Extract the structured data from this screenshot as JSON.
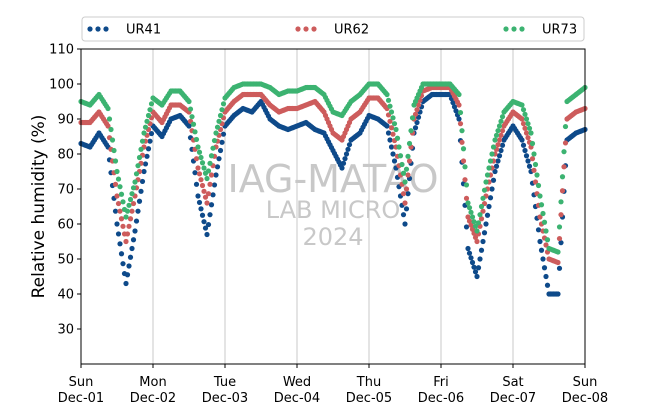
{
  "chart_data": {
    "type": "scatter",
    "ylabel": "Relative humidity (%)",
    "ylim": [
      20,
      110
    ],
    "yticks": [
      30,
      40,
      50,
      60,
      70,
      80,
      90,
      100,
      110
    ],
    "xlim": [
      "2024-12-01T00:00",
      "2024-12-08T00:00"
    ],
    "xticks": [
      {
        "x": "2024-12-01",
        "day": "Sun",
        "date": "Dec-01"
      },
      {
        "x": "2024-12-02",
        "day": "Mon",
        "date": "Dec-02"
      },
      {
        "x": "2024-12-03",
        "day": "Tue",
        "date": "Dec-03"
      },
      {
        "x": "2024-12-04",
        "day": "Wed",
        "date": "Dec-04"
      },
      {
        "x": "2024-12-05",
        "day": "Thu",
        "date": "Dec-05"
      },
      {
        "x": "2024-12-06",
        "day": "Fri",
        "date": "Dec-06"
      },
      {
        "x": "2024-12-07",
        "day": "Sat",
        "date": "Dec-07"
      },
      {
        "x": "2024-12-08",
        "day": "Sun",
        "date": "Dec-08"
      }
    ],
    "grid": "vertical",
    "legend_position": "top",
    "watermark": [
      "IAG-MATAO",
      "LAB MICRO",
      "2024"
    ],
    "series": [
      {
        "name": "UR41",
        "color": "#0e4a8a",
        "x": [
          "2024-12-01T00:00",
          "2024-12-01T03:00",
          "2024-12-01T06:00",
          "2024-12-01T09:00",
          "2024-12-01T12:00",
          "2024-12-01T15:00",
          "2024-12-01T18:00",
          "2024-12-01T21:00",
          "2024-12-02T00:00",
          "2024-12-02T03:00",
          "2024-12-02T06:00",
          "2024-12-02T09:00",
          "2024-12-02T12:00",
          "2024-12-02T15:00",
          "2024-12-02T18:00",
          "2024-12-02T21:00",
          "2024-12-03T00:00",
          "2024-12-03T03:00",
          "2024-12-03T06:00",
          "2024-12-03T09:00",
          "2024-12-03T12:00",
          "2024-12-03T15:00",
          "2024-12-03T18:00",
          "2024-12-03T21:00",
          "2024-12-04T00:00",
          "2024-12-04T03:00",
          "2024-12-04T06:00",
          "2024-12-04T09:00",
          "2024-12-04T12:00",
          "2024-12-04T15:00",
          "2024-12-04T18:00",
          "2024-12-04T21:00",
          "2024-12-05T00:00",
          "2024-12-05T03:00",
          "2024-12-05T06:00",
          "2024-12-05T09:00",
          "2024-12-05T12:00",
          "2024-12-05T15:00",
          "2024-12-05T18:00",
          "2024-12-05T21:00",
          "2024-12-06T00:00",
          "2024-12-06T03:00",
          "2024-12-06T06:00",
          "2024-12-06T09:00",
          "2024-12-06T12:00",
          "2024-12-06T15:00",
          "2024-12-06T18:00",
          "2024-12-06T21:00",
          "2024-12-07T00:00",
          "2024-12-07T03:00",
          "2024-12-07T06:00",
          "2024-12-07T09:00",
          "2024-12-07T12:00",
          "2024-12-07T15:00",
          "2024-12-07T18:00",
          "2024-12-07T21:00",
          "2024-12-08T00:00"
        ],
        "values": [
          83,
          82,
          86,
          82,
          60,
          43,
          58,
          75,
          88,
          85,
          90,
          91,
          88,
          68,
          57,
          74,
          88,
          91,
          93,
          92,
          95,
          90,
          88,
          87,
          88,
          89,
          87,
          86,
          81,
          76,
          84,
          86,
          91,
          90,
          88,
          76,
          60,
          86,
          95,
          97,
          97,
          97,
          90,
          53,
          45,
          60,
          75,
          84,
          88,
          84,
          75,
          55,
          40,
          40,
          84,
          86,
          87
        ]
      },
      {
        "name": "UR62",
        "color": "#cd5c5c",
        "x": [
          "2024-12-01T00:00",
          "2024-12-01T03:00",
          "2024-12-01T06:00",
          "2024-12-01T09:00",
          "2024-12-01T12:00",
          "2024-12-01T15:00",
          "2024-12-01T18:00",
          "2024-12-01T21:00",
          "2024-12-02T00:00",
          "2024-12-02T03:00",
          "2024-12-02T06:00",
          "2024-12-02T09:00",
          "2024-12-02T12:00",
          "2024-12-02T15:00",
          "2024-12-02T18:00",
          "2024-12-02T21:00",
          "2024-12-03T00:00",
          "2024-12-03T03:00",
          "2024-12-03T06:00",
          "2024-12-03T09:00",
          "2024-12-03T12:00",
          "2024-12-03T15:00",
          "2024-12-03T18:00",
          "2024-12-03T21:00",
          "2024-12-04T00:00",
          "2024-12-04T03:00",
          "2024-12-04T06:00",
          "2024-12-04T09:00",
          "2024-12-04T12:00",
          "2024-12-04T15:00",
          "2024-12-04T18:00",
          "2024-12-04T21:00",
          "2024-12-05T00:00",
          "2024-12-05T03:00",
          "2024-12-05T06:00",
          "2024-12-05T09:00",
          "2024-12-05T12:00",
          "2024-12-05T15:00",
          "2024-12-05T18:00",
          "2024-12-05T21:00",
          "2024-12-06T00:00",
          "2024-12-06T03:00",
          "2024-12-06T06:00",
          "2024-12-06T09:00",
          "2024-12-06T12:00",
          "2024-12-06T15:00",
          "2024-12-06T18:00",
          "2024-12-06T21:00",
          "2024-12-07T00:00",
          "2024-12-07T03:00",
          "2024-12-07T06:00",
          "2024-12-07T09:00",
          "2024-12-07T12:00",
          "2024-12-07T15:00",
          "2024-12-07T18:00",
          "2024-12-07T21:00",
          "2024-12-08T00:00"
        ],
        "values": [
          89,
          89,
          92,
          88,
          68,
          55,
          68,
          82,
          92,
          89,
          94,
          94,
          92,
          76,
          66,
          82,
          92,
          95,
          97,
          97,
          97,
          94,
          92,
          93,
          93,
          94,
          95,
          92,
          86,
          84,
          90,
          92,
          96,
          96,
          93,
          82,
          66,
          90,
          98,
          99,
          99,
          99,
          94,
          62,
          55,
          68,
          80,
          88,
          92,
          90,
          82,
          62,
          50,
          49,
          90,
          92,
          93
        ]
      },
      {
        "name": "UR73",
        "color": "#3cb371",
        "x": [
          "2024-12-01T00:00",
          "2024-12-01T03:00",
          "2024-12-01T06:00",
          "2024-12-01T09:00",
          "2024-12-01T12:00",
          "2024-12-01T15:00",
          "2024-12-01T18:00",
          "2024-12-01T21:00",
          "2024-12-02T00:00",
          "2024-12-02T03:00",
          "2024-12-02T06:00",
          "2024-12-02T09:00",
          "2024-12-02T12:00",
          "2024-12-02T15:00",
          "2024-12-02T18:00",
          "2024-12-02T21:00",
          "2024-12-03T00:00",
          "2024-12-03T03:00",
          "2024-12-03T06:00",
          "2024-12-03T09:00",
          "2024-12-03T12:00",
          "2024-12-03T15:00",
          "2024-12-03T18:00",
          "2024-12-03T21:00",
          "2024-12-04T00:00",
          "2024-12-04T03:00",
          "2024-12-04T06:00",
          "2024-12-04T09:00",
          "2024-12-04T12:00",
          "2024-12-04T15:00",
          "2024-12-04T18:00",
          "2024-12-04T21:00",
          "2024-12-05T00:00",
          "2024-12-05T03:00",
          "2024-12-05T06:00",
          "2024-12-05T09:00",
          "2024-12-05T12:00",
          "2024-12-05T15:00",
          "2024-12-05T18:00",
          "2024-12-05T21:00",
          "2024-12-06T00:00",
          "2024-12-06T03:00",
          "2024-12-06T06:00",
          "2024-12-06T09:00",
          "2024-12-06T12:00",
          "2024-12-06T15:00",
          "2024-12-06T18:00",
          "2024-12-06T21:00",
          "2024-12-07T00:00",
          "2024-12-07T03:00",
          "2024-12-07T06:00",
          "2024-12-07T09:00",
          "2024-12-07T12:00",
          "2024-12-07T15:00",
          "2024-12-07T18:00",
          "2024-12-07T21:00",
          "2024-12-08T00:00"
        ],
        "values": [
          95,
          94,
          97,
          93,
          75,
          62,
          72,
          86,
          96,
          94,
          98,
          98,
          95,
          82,
          73,
          86,
          96,
          99,
          100,
          100,
          100,
          99,
          97,
          98,
          98,
          99,
          99,
          97,
          92,
          91,
          95,
          97,
          100,
          100,
          97,
          87,
          72,
          94,
          100,
          100,
          100,
          100,
          97,
          66,
          58,
          72,
          84,
          92,
          95,
          94,
          86,
          68,
          53,
          52,
          95,
          97,
          99
        ]
      }
    ]
  }
}
